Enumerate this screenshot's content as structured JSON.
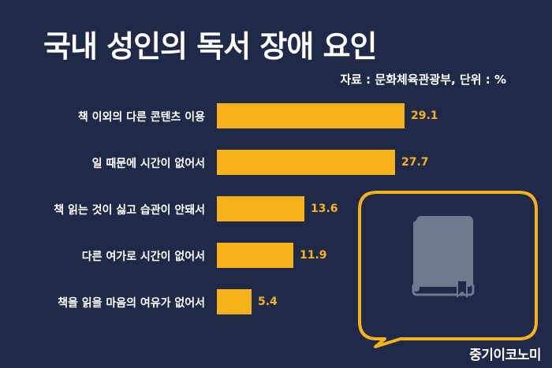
{
  "title": "국내 성인의 독서 장애 요인",
  "source": "자료 : 문화체육관광부, 단위 : %",
  "brand": "중기이코노미",
  "colors": {
    "background": "#1e2a47",
    "bar": "#f7b21a",
    "value_label": "#f7b21a",
    "text": "#ffffff",
    "book_icon": "#6f7a90"
  },
  "decoration": {
    "icon": "book-icon",
    "shape": "speech-bubble"
  },
  "chart_data": {
    "type": "bar",
    "orientation": "horizontal",
    "title": "국내 성인의 독서 장애 요인",
    "unit": "%",
    "categories": [
      "책 이외의 다른 콘텐츠 이용",
      "일 때문에 시간이 없어서",
      "책 읽는 것이 싫고 습관이 안돼서",
      "다른 여가로 시간이 없어서",
      "책을 읽을 마음의 여유가 없어서"
    ],
    "values": [
      29.1,
      27.7,
      13.6,
      11.9,
      5.4
    ],
    "value_labels": [
      "29.1",
      "27.7",
      "13.6",
      "11.9",
      "5.4"
    ],
    "xlim": [
      0,
      30
    ],
    "grid": false,
    "legend": "none"
  }
}
